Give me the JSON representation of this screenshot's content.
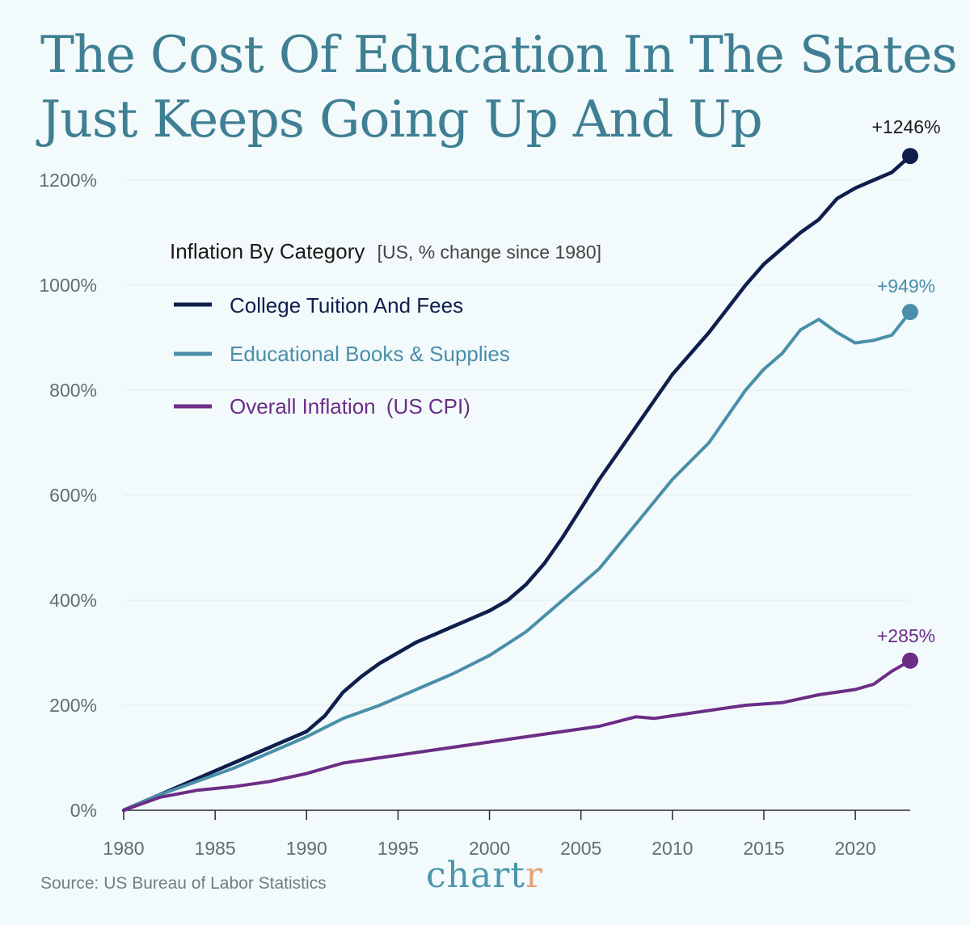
{
  "title_lines": [
    "The Cost Of Education In The States",
    "Just Keeps Going Up And Up"
  ],
  "source": "Source: US Bureau of Labor Statistics",
  "brand": {
    "main": "chart",
    "accent": "r",
    "main_color": "#4a96ad",
    "accent_color": "#e6a27a"
  },
  "chart_data": {
    "type": "line",
    "title": "The Cost Of Education In The States Just Keeps Going Up And Up",
    "legend_title": "Inflation By Category",
    "legend_subtitle": "[US, % change since 1980]",
    "legend_placement": "top-left",
    "grid": true,
    "xlabel": "",
    "ylabel": "",
    "xlim": [
      1980,
      2023
    ],
    "ylim": [
      0,
      1200
    ],
    "x_ticks": [
      "1980",
      "1985",
      "1990",
      "1995",
      "2000",
      "2005",
      "2010",
      "2015",
      "2020"
    ],
    "y_ticks": [
      "0%",
      "200%",
      "400%",
      "600%",
      "800%",
      "1000%",
      "1200%"
    ],
    "series": [
      {
        "name": "College Tuition And Fees",
        "color": "#0f1f4d",
        "end_label": "+1246%",
        "x": [
          1980,
          1982,
          1984,
          1986,
          1988,
          1990,
          1991,
          1992,
          1993,
          1994,
          1995,
          1996,
          1997,
          1998,
          1999,
          2000,
          2001,
          2002,
          2003,
          2004,
          2005,
          2006,
          2007,
          2008,
          2009,
          2010,
          2011,
          2012,
          2013,
          2014,
          2015,
          2016,
          2017,
          2018,
          2019,
          2020,
          2021,
          2022,
          2023
        ],
        "y": [
          0,
          30,
          60,
          90,
          120,
          150,
          180,
          225,
          255,
          280,
          300,
          320,
          335,
          350,
          365,
          380,
          400,
          430,
          470,
          520,
          575,
          630,
          680,
          730,
          780,
          830,
          870,
          910,
          955,
          1000,
          1040,
          1070,
          1100,
          1125,
          1165,
          1185,
          1200,
          1215,
          1246
        ]
      },
      {
        "name": "Educational Books & Supplies",
        "color": "#4a8faa",
        "end_label": "+949%",
        "x": [
          1980,
          1982,
          1984,
          1986,
          1988,
          1990,
          1992,
          1994,
          1996,
          1998,
          2000,
          2002,
          2004,
          2006,
          2008,
          2010,
          2012,
          2014,
          2015,
          2016,
          2017,
          2018,
          2019,
          2020,
          2021,
          2022,
          2023
        ],
        "y": [
          0,
          30,
          55,
          80,
          110,
          140,
          175,
          200,
          230,
          260,
          295,
          340,
          400,
          460,
          545,
          630,
          700,
          800,
          840,
          870,
          915,
          935,
          910,
          890,
          895,
          905,
          949
        ]
      },
      {
        "name": "Overall Inflation",
        "name_suffix": "(US CPI)",
        "color": "#6b2d86",
        "end_label": "+285%",
        "x": [
          1980,
          1982,
          1984,
          1986,
          1988,
          1990,
          1992,
          1994,
          1996,
          1998,
          2000,
          2002,
          2004,
          2006,
          2008,
          2009,
          2010,
          2012,
          2014,
          2016,
          2018,
          2020,
          2021,
          2022,
          2023
        ],
        "y": [
          0,
          25,
          38,
          45,
          55,
          70,
          90,
          100,
          110,
          120,
          130,
          140,
          150,
          160,
          178,
          175,
          180,
          190,
          200,
          205,
          220,
          230,
          240,
          265,
          285
        ]
      }
    ]
  }
}
